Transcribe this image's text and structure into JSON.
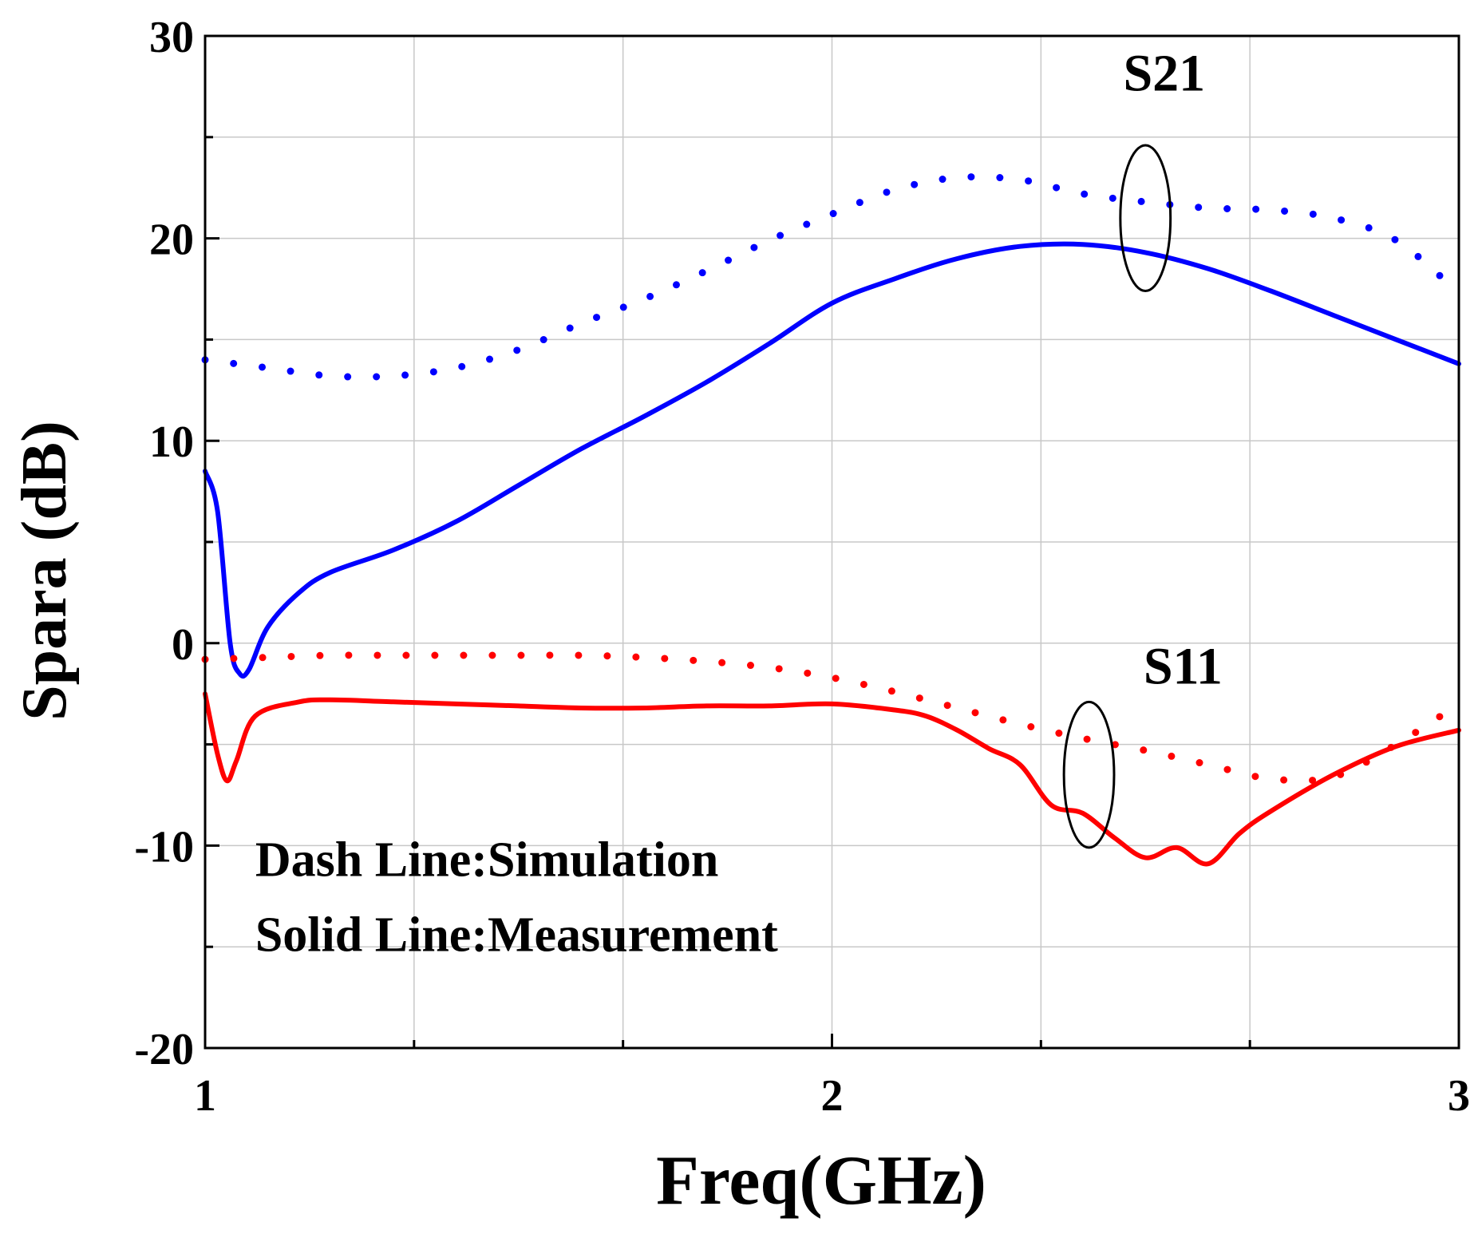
{
  "chart_data": {
    "type": "line",
    "xlabel": "Freq(GHz)",
    "ylabel": "Spara (dB)",
    "xlim": [
      1,
      3
    ],
    "ylim": [
      -20,
      30
    ],
    "x_ticks": [
      1,
      2,
      3
    ],
    "x_tick_labels": [
      "1",
      "2",
      "3"
    ],
    "x_minor_step": 0.333333,
    "y_ticks": [
      -20,
      -10,
      0,
      10,
      20,
      30
    ],
    "y_tick_labels": [
      "-20",
      "-10",
      "0",
      "10",
      "20",
      "30"
    ],
    "y_minor_step": 5,
    "grid": true,
    "series": [
      {
        "name": "S21 simulation",
        "style": "dotted",
        "color": "#0000ff",
        "x": [
          1.0,
          1.1,
          1.2,
          1.3,
          1.4,
          1.5,
          1.6,
          1.7,
          1.8,
          1.9,
          2.0,
          2.1,
          2.2,
          2.3,
          2.4,
          2.5,
          2.6,
          2.7,
          2.8,
          2.9,
          3.0
        ],
        "y": [
          14.0,
          13.6,
          13.2,
          13.2,
          13.6,
          14.5,
          15.8,
          17.0,
          18.4,
          19.9,
          21.2,
          22.4,
          23.0,
          22.9,
          22.2,
          21.8,
          21.5,
          21.4,
          21.0,
          19.9,
          17.3
        ]
      },
      {
        "name": "S21 measurement",
        "style": "solid",
        "color": "#0000ff",
        "x": [
          1.0,
          1.02,
          1.04,
          1.055,
          1.07,
          1.1,
          1.15,
          1.2,
          1.3,
          1.4,
          1.5,
          1.6,
          1.7,
          1.8,
          1.9,
          2.0,
          2.1,
          2.2,
          2.3,
          2.4,
          2.5,
          2.6,
          2.7,
          2.8,
          2.9,
          3.0
        ],
        "y": [
          8.5,
          6.5,
          0.0,
          -1.5,
          -1.3,
          0.8,
          2.5,
          3.5,
          4.6,
          6.0,
          7.8,
          9.6,
          11.2,
          12.9,
          14.8,
          16.8,
          18.0,
          19.0,
          19.6,
          19.7,
          19.3,
          18.5,
          17.4,
          16.2,
          15.0,
          13.8
        ]
      },
      {
        "name": "S11 simulation",
        "style": "dotted",
        "color": "#ff0000",
        "x": [
          1.0,
          1.1,
          1.2,
          1.3,
          1.4,
          1.5,
          1.6,
          1.7,
          1.8,
          1.9,
          2.0,
          2.1,
          2.2,
          2.3,
          2.4,
          2.5,
          2.6,
          2.7,
          2.8,
          2.9,
          3.0
        ],
        "y": [
          -0.8,
          -0.7,
          -0.6,
          -0.6,
          -0.6,
          -0.6,
          -0.6,
          -0.7,
          -0.9,
          -1.2,
          -1.7,
          -2.4,
          -3.2,
          -4.0,
          -4.7,
          -5.3,
          -6.0,
          -6.7,
          -6.6,
          -5.0,
          -3.0
        ]
      },
      {
        "name": "S11 measurement",
        "style": "solid",
        "color": "#ff0000",
        "x": [
          1.0,
          1.02,
          1.035,
          1.05,
          1.08,
          1.15,
          1.2,
          1.3,
          1.4,
          1.5,
          1.6,
          1.7,
          1.8,
          1.9,
          2.0,
          2.1,
          2.15,
          2.2,
          2.25,
          2.3,
          2.35,
          2.4,
          2.45,
          2.5,
          2.55,
          2.6,
          2.65,
          2.7,
          2.8,
          2.9,
          3.0
        ],
        "y": [
          -2.5,
          -5.5,
          -6.8,
          -5.8,
          -3.6,
          -2.9,
          -2.8,
          -2.9,
          -3.0,
          -3.1,
          -3.2,
          -3.2,
          -3.1,
          -3.1,
          -3.0,
          -3.3,
          -3.6,
          -4.3,
          -5.2,
          -6.0,
          -8.0,
          -8.4,
          -9.6,
          -10.6,
          -10.1,
          -10.9,
          -9.4,
          -8.3,
          -6.5,
          -5.1,
          -4.3
        ]
      }
    ],
    "annotations": [
      {
        "text": "S21",
        "x": 2.53,
        "y": 27.3,
        "ellipse": {
          "cx": 2.5,
          "cy": 21.0,
          "rx": 0.04,
          "ry": 3.6
        }
      },
      {
        "text": "S11",
        "x": 2.56,
        "y": -2.0,
        "ellipse": {
          "cx": 2.41,
          "cy": -6.5,
          "rx": 0.04,
          "ry": 3.6
        }
      },
      {
        "text": "Dash Line:Simulation",
        "x": 1.08,
        "y": -11.5
      },
      {
        "text": "Solid Line:Measurement",
        "x": 1.08,
        "y": -15.2
      }
    ]
  }
}
